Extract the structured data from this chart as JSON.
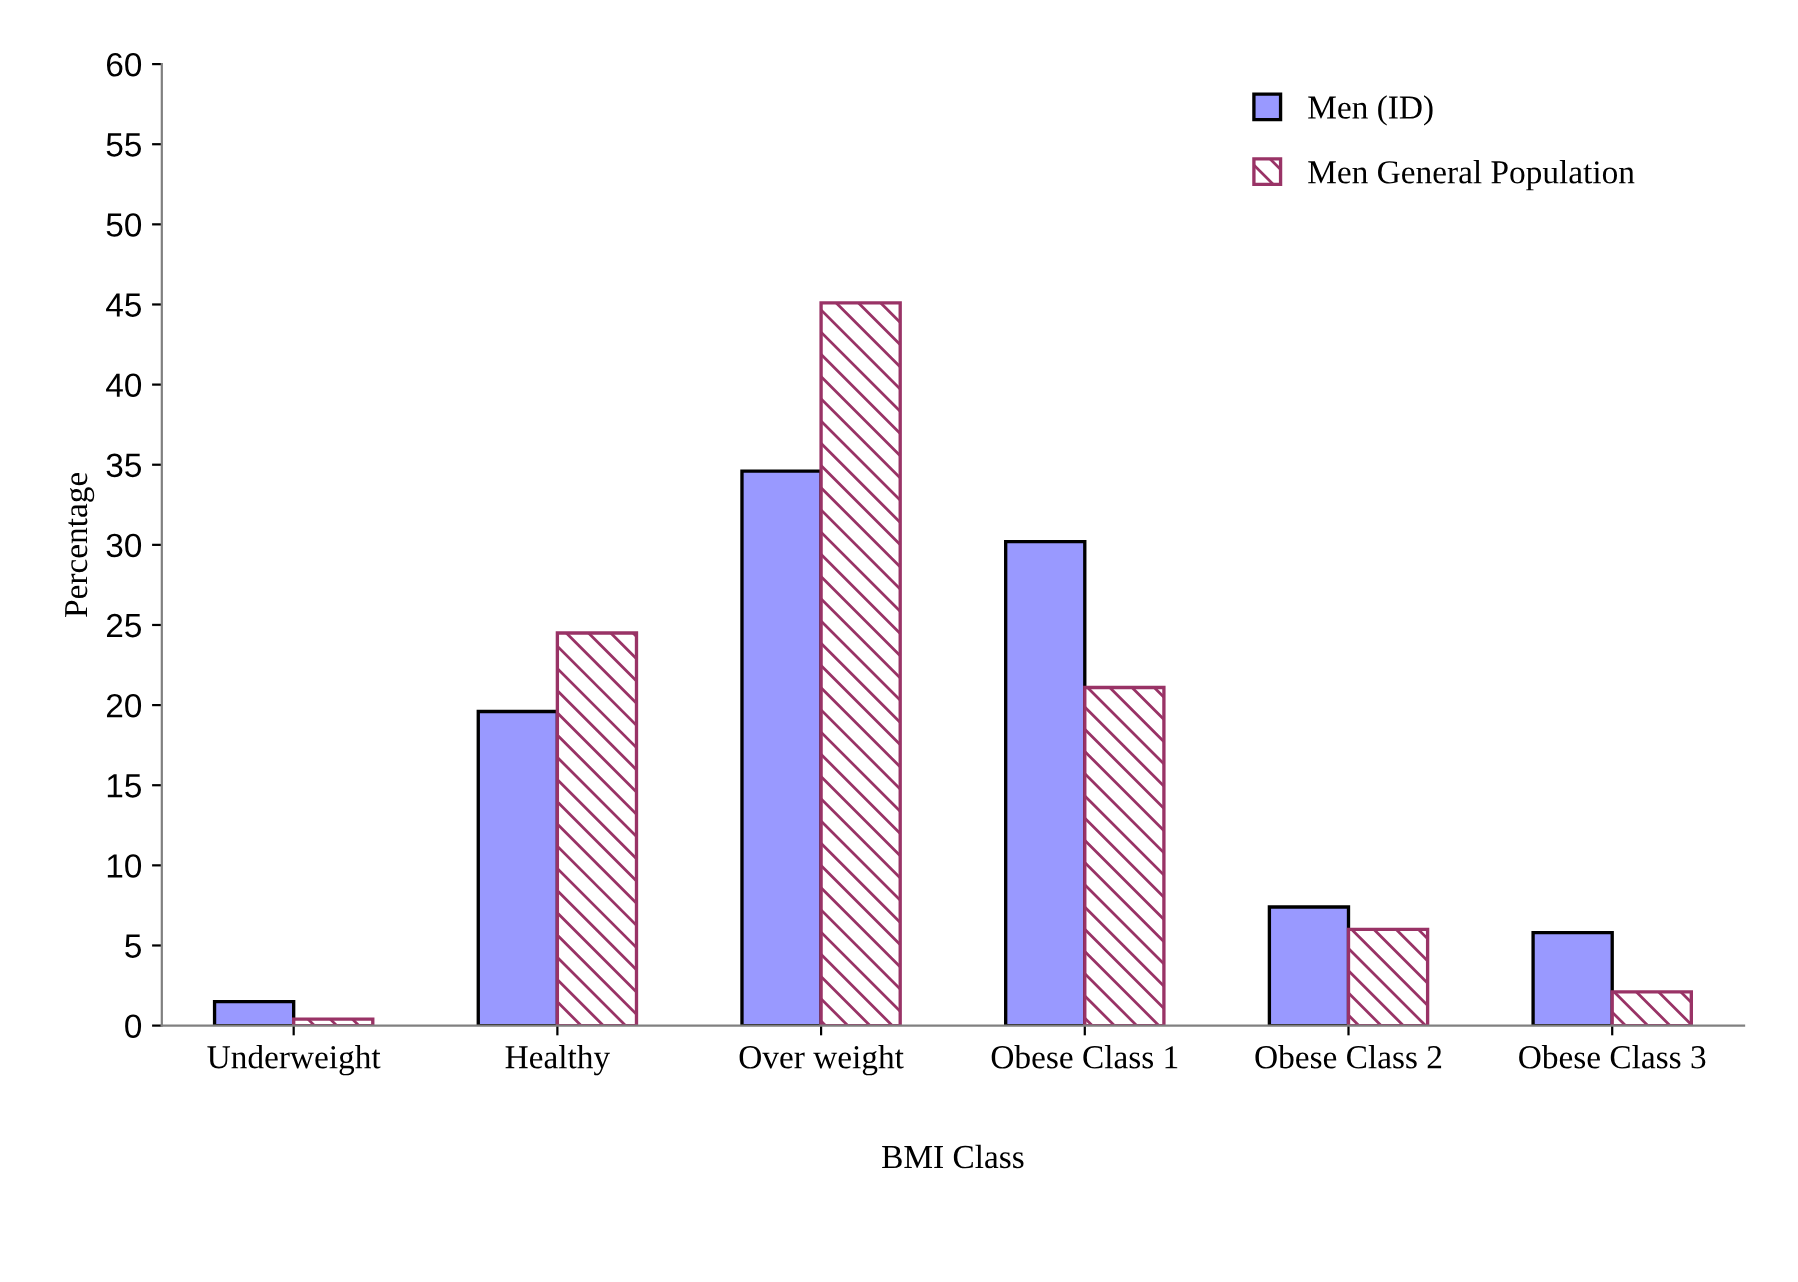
{
  "chart_data": {
    "type": "bar",
    "xlabel": "BMI Class",
    "ylabel": "Percentage",
    "categories": [
      "Underweight",
      "Healthy",
      "Over weight",
      "Obese Class 1",
      "Obese Class 2",
      "Obese Class 3"
    ],
    "series": [
      {
        "name": "Men (ID)",
        "color": "#9999ff",
        "values": [
          1.5,
          19.6,
          34.6,
          30.2,
          7.4,
          5.8
        ]
      },
      {
        "name": "Men General Population",
        "color": "#993366",
        "values": [
          0.4,
          24.5,
          45.1,
          21.1,
          6.0,
          2.1
        ]
      }
    ],
    "ylim": [
      0,
      60
    ],
    "yticks": [
      0,
      5,
      10,
      15,
      20,
      25,
      30,
      35,
      40,
      45,
      50,
      55,
      60
    ],
    "grid": false,
    "legend": "top right"
  }
}
